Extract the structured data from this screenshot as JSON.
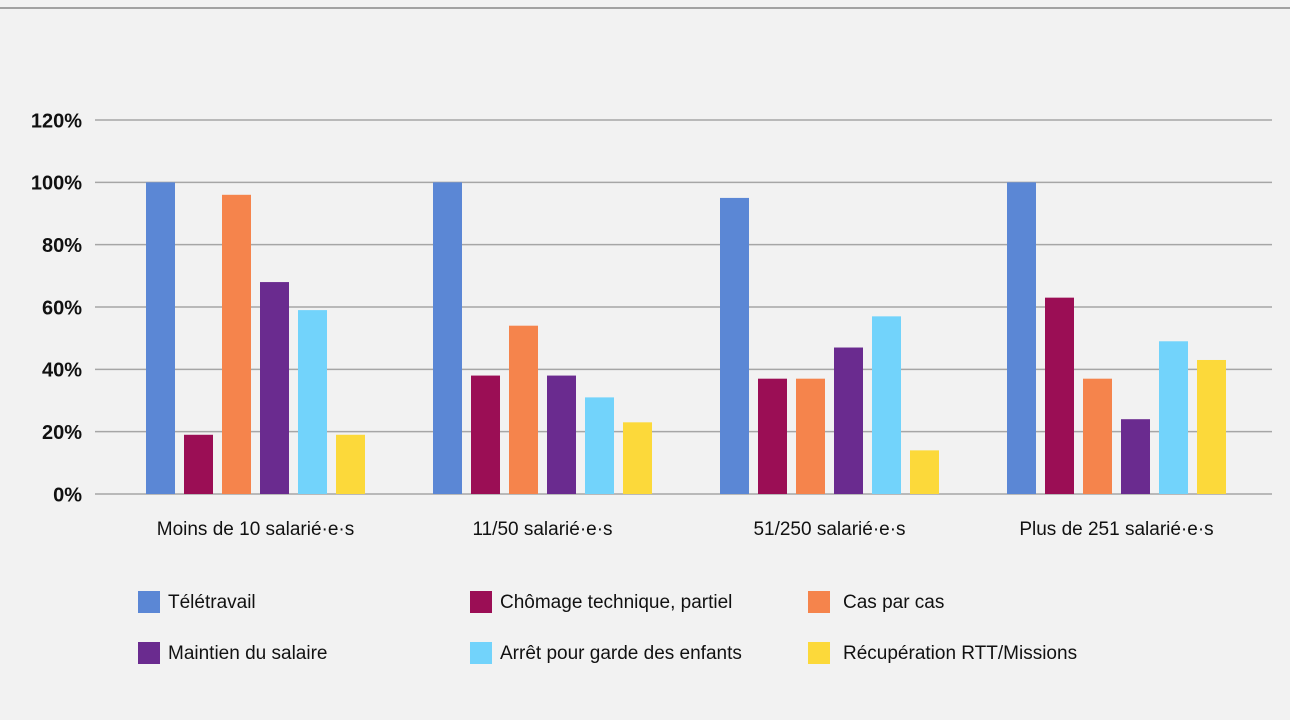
{
  "chart_data": {
    "type": "bar",
    "categories": [
      "Moins de 10 salarié·e·s",
      "11/50 salarié·e·s",
      "51/250 salarié·e·s",
      "Plus de 251 salarié·e·s"
    ],
    "series": [
      {
        "name": "Télétravail",
        "color": "#5b87d5",
        "values": [
          100,
          100,
          95,
          100
        ]
      },
      {
        "name": "Chômage technique, partiel",
        "color": "#9b0e55",
        "values": [
          19,
          38,
          37,
          63
        ]
      },
      {
        "name": "Cas par cas",
        "color": "#f5844c",
        "values": [
          96,
          54,
          37,
          37
        ]
      },
      {
        "name": "Maintien du salaire",
        "color": "#6a2b8f",
        "values": [
          68,
          38,
          47,
          24
        ]
      },
      {
        "name": "Arrêt pour garde des enfants",
        "color": "#72d3fb",
        "values": [
          59,
          31,
          57,
          49
        ]
      },
      {
        "name": "Récupération RTT/Missions",
        "color": "#fcd93a",
        "values": [
          19,
          23,
          14,
          43
        ]
      }
    ],
    "ylim": [
      0,
      120
    ],
    "yticks": [
      {
        "value": 0,
        "label": "0%"
      },
      {
        "value": 20,
        "label": "20%"
      },
      {
        "value": 40,
        "label": "40%"
      },
      {
        "value": 60,
        "label": "60%"
      },
      {
        "value": 80,
        "label": "80%"
      },
      {
        "value": 100,
        "label": "100%"
      },
      {
        "value": 120,
        "label": "120%"
      }
    ],
    "grid": true,
    "legend": "bottom"
  }
}
